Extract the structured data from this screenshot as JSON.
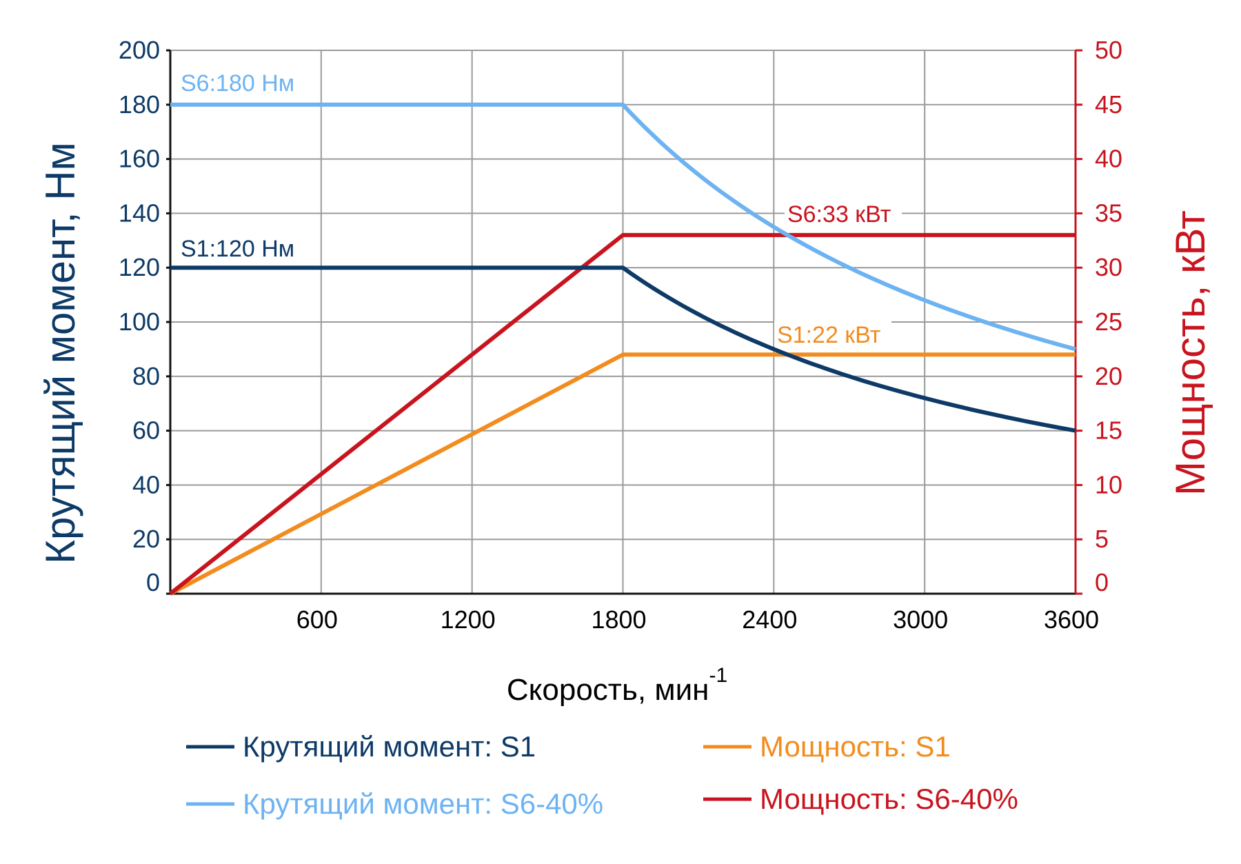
{
  "chart_data": {
    "type": "line",
    "x_axis": {
      "label": "Скорость, мин",
      "label_superscript": "-1",
      "range": [
        0,
        3600
      ],
      "ticks": [
        600,
        1200,
        1800,
        2400,
        3000,
        3600
      ],
      "tick_labels": [
        "600",
        "1200",
        "1800",
        "2400",
        "3000",
        "3600"
      ]
    },
    "y_left": {
      "label": "Крутящий момент, Нм",
      "range": [
        0,
        200
      ],
      "ticks": [
        0,
        20,
        40,
        60,
        80,
        100,
        120,
        140,
        160,
        180,
        200
      ],
      "tick_labels": [
        "0",
        "20",
        "40",
        "60",
        "80",
        "100",
        "120",
        "140",
        "160",
        "180",
        "200"
      ],
      "color": "#0d3a66"
    },
    "y_right": {
      "label": "Мощность, кВт",
      "range": [
        0,
        50
      ],
      "ticks": [
        0,
        5,
        10,
        15,
        20,
        25,
        30,
        35,
        40,
        45,
        50
      ],
      "tick_labels": [
        "0",
        "5",
        "10",
        "15",
        "20",
        "25",
        "30",
        "35",
        "40",
        "45",
        "50"
      ],
      "color": "#c8141e"
    },
    "grid": true,
    "legend_position": "bottom",
    "series": [
      {
        "name": "Крутящий момент: S1",
        "axis": "left",
        "color": "#0d3a66",
        "x": [
          0,
          1800,
          2100,
          2400,
          2700,
          3000,
          3300,
          3600
        ],
        "y": [
          120,
          120,
          102.9,
          90,
          80,
          72,
          65.5,
          60
        ]
      },
      {
        "name": "Крутящий момент: S6-40%",
        "axis": "left",
        "color": "#6db3f2",
        "x": [
          0,
          1800,
          2100,
          2400,
          2700,
          3000,
          3300,
          3600
        ],
        "y": [
          180,
          180,
          154.3,
          135,
          120,
          108,
          98.2,
          90
        ]
      },
      {
        "name": "Мощность: S1",
        "axis": "right",
        "color": "#f28c1e",
        "x": [
          0,
          1800,
          3600
        ],
        "y": [
          0,
          22,
          22
        ]
      },
      {
        "name": "Мощность: S6-40%",
        "axis": "right",
        "color": "#c8141e",
        "x": [
          0,
          1800,
          3600
        ],
        "y": [
          0,
          33,
          33
        ]
      }
    ],
    "annotations": [
      {
        "text": "S6:180 Нм",
        "color": "#6db3f2"
      },
      {
        "text": "S1:120 Нм",
        "color": "#0d3a66"
      },
      {
        "text": "S6:33 кВт",
        "color": "#c8141e"
      },
      {
        "text": "S1:22 кВт",
        "color": "#f28c1e"
      }
    ]
  }
}
